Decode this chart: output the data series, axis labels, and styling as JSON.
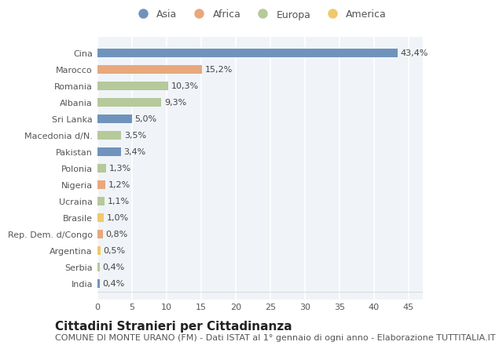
{
  "countries": [
    "Cina",
    "Marocco",
    "Romania",
    "Albania",
    "Sri Lanka",
    "Macedonia d/N.",
    "Pakistan",
    "Polonia",
    "Nigeria",
    "Ucraina",
    "Brasile",
    "Rep. Dem. d/Congo",
    "Argentina",
    "Serbia",
    "India"
  ],
  "values": [
    43.4,
    15.2,
    10.3,
    9.3,
    5.0,
    3.5,
    3.4,
    1.3,
    1.2,
    1.1,
    1.0,
    0.8,
    0.5,
    0.4,
    0.4
  ],
  "labels": [
    "43,4%",
    "15,2%",
    "10,3%",
    "9,3%",
    "5,0%",
    "3,5%",
    "3,4%",
    "1,3%",
    "1,2%",
    "1,1%",
    "1,0%",
    "0,8%",
    "0,5%",
    "0,4%",
    "0,4%"
  ],
  "continents": [
    "Asia",
    "Africa",
    "Europa",
    "Europa",
    "Asia",
    "Europa",
    "Asia",
    "Europa",
    "Africa",
    "Europa",
    "America",
    "Africa",
    "America",
    "Europa",
    "Asia"
  ],
  "colors": {
    "Asia": "#7093bc",
    "Africa": "#e8a87c",
    "Europa": "#b5c99a",
    "America": "#f0c96a"
  },
  "legend_labels": [
    "Asia",
    "Africa",
    "Europa",
    "America"
  ],
  "xlim": [
    0,
    47
  ],
  "xticks": [
    0,
    5,
    10,
    15,
    20,
    25,
    30,
    35,
    40,
    45
  ],
  "title": "Cittadini Stranieri per Cittadinanza",
  "subtitle": "COMUNE DI MONTE URANO (FM) - Dati ISTAT al 1° gennaio di ogni anno - Elaborazione TUTTITALIA.IT",
  "bg_color": "#ffffff",
  "plot_bg_color": "#f0f4f8",
  "grid_color": "#ffffff",
  "bar_height": 0.55,
  "title_fontsize": 11,
  "subtitle_fontsize": 8,
  "label_fontsize": 8,
  "tick_fontsize": 8,
  "legend_fontsize": 9
}
